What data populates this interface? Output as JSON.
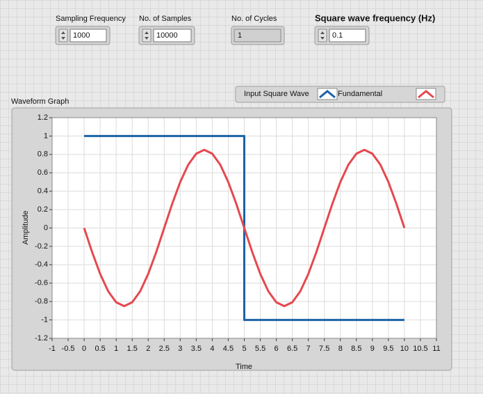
{
  "controls": [
    {
      "label": "Sampling Frequency",
      "value": 1000
    },
    {
      "label": "No. of Samples",
      "value": 10000
    },
    {
      "label": "No. of Cycles",
      "value": 1
    },
    {
      "label": "Square wave frequency (Hz)",
      "value": 0.1
    }
  ],
  "chart_data": {
    "type": "line",
    "title": "Waveform Graph",
    "x_label": "Time",
    "y_label": "Amplitude",
    "series": [
      {
        "name": "Input Square Wave",
        "color": "#1a62a6",
        "x": [
          0,
          5,
          5,
          10
        ],
        "values": [
          1,
          1,
          -1,
          -1
        ]
      },
      {
        "name": "Fundamental",
        "color": "#e5484f",
        "x": [
          0,
          0.25,
          0.5,
          0.75,
          1,
          1.25,
          1.5,
          1.75,
          2,
          2.25,
          2.5,
          2.75,
          3,
          3.25,
          3.5,
          3.75,
          4,
          4.25,
          4.5,
          4.75,
          5,
          5.25,
          5.5,
          5.75,
          6,
          6.25,
          6.5,
          6.75,
          7,
          7.25,
          7.5,
          7.75,
          8,
          8.25,
          8.5,
          8.75,
          9,
          9.25,
          9.5,
          9.75,
          10
        ],
        "values": [
          0,
          -0.263,
          -0.5,
          -0.688,
          -0.808,
          -0.85,
          -0.808,
          -0.688,
          -0.5,
          -0.263,
          0,
          0.263,
          0.5,
          0.688,
          0.808,
          0.85,
          0.808,
          0.688,
          0.5,
          0.263,
          0,
          -0.263,
          -0.5,
          -0.688,
          -0.808,
          -0.85,
          -0.808,
          -0.688,
          -0.5,
          -0.263,
          0,
          0.263,
          0.5,
          0.688,
          0.808,
          0.85,
          0.808,
          0.688,
          0.5,
          0.263,
          0
        ]
      }
    ],
    "xlim": [
      -1,
      11
    ],
    "xticks": [
      -1,
      -0.5,
      0,
      0.5,
      1,
      1.5,
      2,
      2.5,
      3,
      3.5,
      4,
      4.5,
      5,
      5.5,
      6,
      6.5,
      7,
      7.5,
      8,
      8.5,
      9,
      9.5,
      10,
      10.5,
      11
    ],
    "ylim": [
      -1.2,
      1.2
    ],
    "yticks": [
      -1.2,
      -1,
      -0.8,
      -0.6,
      -0.4,
      -0.2,
      0,
      0.2,
      0.4,
      0.6,
      0.8,
      1,
      1.2
    ],
    "grid": true
  }
}
